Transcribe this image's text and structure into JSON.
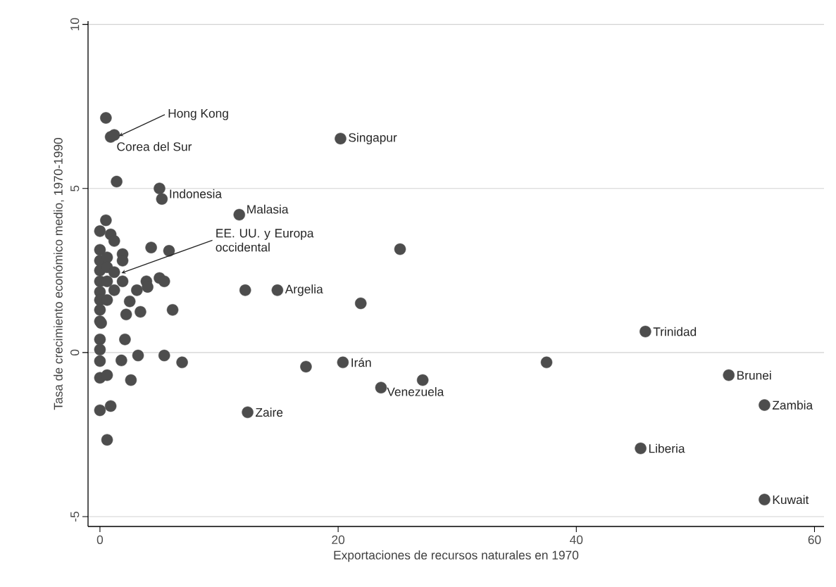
{
  "chart_data": {
    "type": "scatter",
    "xlabel": "Exportaciones de recursos naturales en 1970",
    "ylabel": "Tasa de crecimiento económico medio, 1970-1990",
    "xlim": [
      -1,
      60.8
    ],
    "ylim": [
      -5.3,
      10.1
    ],
    "xticks": [
      0,
      20,
      40,
      60
    ],
    "yticks": [
      -5,
      0,
      5,
      10
    ],
    "grid": "y",
    "marker": "circle",
    "series": [
      {
        "color": "#4d4d4d",
        "x": [
          0.5,
          0.9,
          1.2,
          1.4,
          5.0,
          5.2,
          20.2,
          11.7,
          25.2,
          14.9,
          12.2,
          21.9,
          45.8,
          37.5,
          20.4,
          17.3,
          23.6,
          27.1,
          12.4,
          52.8,
          55.8,
          45.4,
          55.8,
          0.5,
          0.0,
          0.9,
          1.2,
          0.0,
          1.9,
          0.0,
          0.6,
          1.9,
          0.0,
          0.6,
          1.2,
          0.0,
          0.6,
          1.9,
          1.2,
          0.0,
          0.0,
          0.6,
          0.0,
          0.0,
          0.1,
          4.3,
          5.8,
          5.0,
          5.4,
          3.9,
          4.0,
          3.1,
          2.5,
          2.2,
          3.4,
          6.1,
          2.1,
          0.0,
          0.0,
          0.0,
          1.8,
          3.2,
          5.4,
          6.9,
          0.0,
          0.6,
          2.6,
          0.0,
          0.9,
          0.6
        ],
        "values": [
          7.15,
          6.57,
          6.63,
          5.21,
          5.0,
          4.68,
          6.52,
          4.2,
          3.15,
          1.9,
          1.9,
          1.5,
          0.64,
          -0.3,
          -0.3,
          -0.43,
          -1.07,
          -0.84,
          -1.82,
          -0.69,
          -1.6,
          -2.92,
          -4.48,
          4.03,
          3.7,
          3.6,
          3.4,
          3.13,
          3.0,
          2.8,
          2.9,
          2.8,
          2.5,
          2.6,
          2.45,
          2.17,
          2.17,
          2.17,
          1.9,
          1.85,
          1.6,
          1.6,
          1.3,
          0.95,
          0.9,
          3.2,
          3.1,
          2.27,
          2.17,
          2.17,
          2.0,
          1.9,
          1.56,
          1.16,
          1.24,
          1.3,
          0.4,
          0.4,
          0.09,
          -0.26,
          -0.24,
          -0.09,
          -0.09,
          -0.3,
          -0.77,
          -0.69,
          -0.84,
          -1.76,
          -1.63,
          -2.66
        ]
      }
    ],
    "annotations": [
      {
        "text": "Hong Kong",
        "x": 1.6,
        "y": 6.6
      },
      {
        "text": "Corea del Sur",
        "x": 0.9,
        "y": 6.57
      },
      {
        "text": "Singapur",
        "x": 20.2,
        "y": 6.52
      },
      {
        "text": "Indonesia",
        "x": 5.2,
        "y": 4.84
      },
      {
        "text": "Malasia",
        "x": 11.7,
        "y": 4.2
      },
      {
        "text": "EE. UU. y Europa occidental",
        "x": 1.8,
        "y": 2.42
      },
      {
        "text": "Argelia",
        "x": 14.9,
        "y": 1.9
      },
      {
        "text": "Trinidad",
        "x": 45.8,
        "y": 0.64
      },
      {
        "text": "Irán",
        "x": 20.4,
        "y": -0.3
      },
      {
        "text": "Venezuela",
        "x": 23.6,
        "y": -1.07
      },
      {
        "text": "Zaire",
        "x": 12.4,
        "y": -1.82
      },
      {
        "text": "Brunei",
        "x": 52.8,
        "y": -0.69
      },
      {
        "text": "Zambia",
        "x": 55.8,
        "y": -1.6
      },
      {
        "text": "Liberia",
        "x": 45.4,
        "y": -2.92
      },
      {
        "text": "Kuwait",
        "x": 55.8,
        "y": -4.48
      }
    ]
  }
}
